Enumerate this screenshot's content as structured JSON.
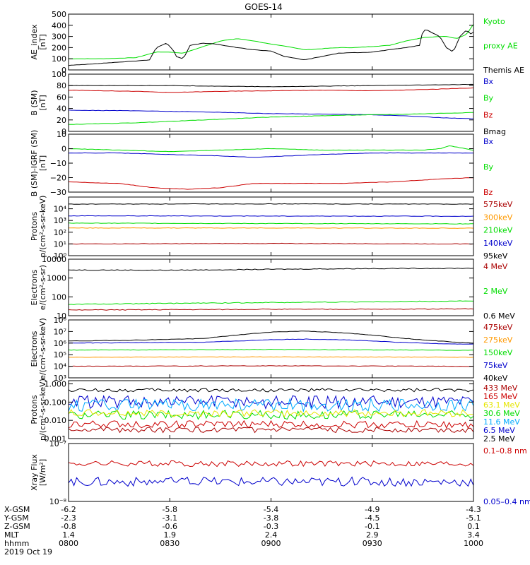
{
  "title": "GOES-14",
  "colors": {
    "black": "#000000",
    "green": "#00dd00",
    "blue": "#0000cc",
    "red": "#cc0000",
    "orange": "#ff9900",
    "yellow": "#e6e600",
    "cyan": "#00aaff",
    "teal": "#00c8a0",
    "maroon": "#aa0000"
  },
  "chart_data": [
    {
      "id": "ae",
      "type": "line",
      "ylabel": [
        "AE_index",
        "[nT]"
      ],
      "yscale": "linear",
      "ylim": [
        0,
        500
      ],
      "yticks": [
        0,
        100,
        200,
        300,
        400,
        500
      ],
      "yticklabels": [
        "0",
        "100",
        "200",
        "300",
        "400",
        "500"
      ],
      "legend": [
        {
          "text": "Kyoto",
          "color": "green"
        },
        {
          "text": "proxy AE",
          "color": "green"
        },
        {
          "text": "Themis AE",
          "color": "black"
        }
      ],
      "series": [
        {
          "name": "Kyoto proxy AE",
          "color": "green",
          "x": [
            0,
            10,
            20,
            26,
            30,
            34,
            40,
            45,
            50,
            55,
            60,
            65,
            70,
            75,
            80,
            85,
            90,
            95,
            100,
            105,
            110,
            112,
            115,
            118,
            120
          ],
          "y": [
            100,
            100,
            110,
            160,
            160,
            150,
            210,
            260,
            280,
            260,
            230,
            210,
            180,
            190,
            200,
            200,
            210,
            220,
            260,
            290,
            300,
            300,
            280,
            320,
            410
          ]
        },
        {
          "name": "Themis AE",
          "color": "black",
          "x": [
            0,
            5,
            10,
            20,
            24,
            26,
            29,
            31,
            32,
            34,
            36,
            40,
            44,
            50,
            55,
            60,
            64,
            70,
            80,
            90,
            95,
            100,
            104,
            105,
            106,
            110,
            112,
            114,
            116,
            118,
            119,
            120
          ],
          "y": [
            40,
            50,
            60,
            80,
            90,
            200,
            240,
            180,
            120,
            100,
            220,
            240,
            230,
            200,
            180,
            170,
            120,
            90,
            150,
            160,
            180,
            200,
            220,
            350,
            360,
            300,
            200,
            160,
            300,
            360,
            320,
            340
          ]
        }
      ]
    },
    {
      "id": "bsm",
      "type": "line",
      "ylabel": [
        "B (SM)",
        "[nT]"
      ],
      "yscale": "linear",
      "ylim": [
        0,
        100
      ],
      "yticks": [
        0,
        20,
        40,
        60,
        80,
        100
      ],
      "yticklabels": [
        "0",
        "20",
        "40",
        "60",
        "80",
        "100"
      ],
      "legend": [
        {
          "text": "Bx",
          "color": "blue"
        },
        {
          "text": "By",
          "color": "green"
        },
        {
          "text": "Bz",
          "color": "red"
        },
        {
          "text": "Bmag",
          "color": "black"
        }
      ],
      "series": [
        {
          "name": "Bmag",
          "color": "black",
          "x": [
            0,
            30,
            60,
            90,
            120
          ],
          "y": [
            80,
            80,
            78,
            80,
            82
          ]
        },
        {
          "name": "Bz",
          "color": "red",
          "x": [
            0,
            20,
            30,
            45,
            60,
            75,
            90,
            105,
            120
          ],
          "y": [
            72,
            70,
            68,
            70,
            71,
            72,
            71,
            73,
            76
          ]
        },
        {
          "name": "Bx",
          "color": "blue",
          "x": [
            0,
            20,
            40,
            60,
            80,
            90,
            100,
            110,
            120
          ],
          "y": [
            37,
            36,
            34,
            31,
            30,
            29,
            27,
            24,
            22
          ]
        },
        {
          "name": "By",
          "color": "green",
          "x": [
            0,
            20,
            40,
            60,
            80,
            100,
            120
          ],
          "y": [
            12,
            15,
            20,
            25,
            28,
            30,
            33
          ]
        }
      ]
    },
    {
      "id": "bdiff",
      "type": "line",
      "ylabel": [
        "B (SM)-IGRF (SM)",
        "[nT]"
      ],
      "yscale": "linear",
      "ylim": [
        -30,
        10
      ],
      "yticks": [
        -30,
        -20,
        -10,
        0,
        10
      ],
      "yticklabels": [
        "−30",
        "−20",
        "−10",
        "0",
        "10"
      ],
      "legend": [
        {
          "text": "Bx",
          "color": "blue"
        },
        {
          "text": "By",
          "color": "green"
        },
        {
          "text": "Bz",
          "color": "red"
        }
      ],
      "series": [
        {
          "name": "By",
          "color": "green",
          "x": [
            0,
            15,
            30,
            45,
            60,
            75,
            90,
            105,
            110,
            113,
            120
          ],
          "y": [
            0,
            -1,
            -2,
            -1,
            0,
            -1,
            -1,
            -1,
            0,
            2,
            -1
          ]
        },
        {
          "name": "Bx",
          "color": "blue",
          "x": [
            0,
            15,
            30,
            45,
            55,
            65,
            75,
            90,
            105,
            120
          ],
          "y": [
            -3,
            -3,
            -4,
            -5,
            -6,
            -5,
            -4,
            -3,
            -3,
            -3
          ]
        },
        {
          "name": "Bz",
          "color": "red",
          "x": [
            0,
            15,
            25,
            35,
            45,
            55,
            65,
            80,
            95,
            110,
            120
          ],
          "y": [
            -23,
            -24,
            -27,
            -28,
            -27,
            -24,
            -24,
            -24,
            -23,
            -21,
            -20
          ]
        }
      ]
    },
    {
      "id": "protons1",
      "type": "line",
      "ylabel": [
        "Protons",
        "p/(cm²-s-sr-keV)"
      ],
      "yscale": "log",
      "ylim": [
        1,
        100000
      ],
      "yticks": [
        1,
        10,
        100,
        1000,
        10000
      ],
      "yticklabels": [
        "10⁰",
        "10¹",
        "10²",
        "10³",
        "10⁴"
      ],
      "legend": [
        {
          "text": "575keV",
          "color": "maroon"
        },
        {
          "text": "300keV",
          "color": "orange"
        },
        {
          "text": "210keV",
          "color": "green"
        },
        {
          "text": "140keV",
          "color": "blue"
        },
        {
          "text": "95keV",
          "color": "black"
        }
      ],
      "series": [
        {
          "name": "95keV",
          "color": "black",
          "x": [
            0,
            60,
            120
          ],
          "y": [
            25000,
            26000,
            25000
          ]
        },
        {
          "name": "140keV",
          "color": "blue",
          "x": [
            0,
            60,
            120
          ],
          "y": [
            2500,
            2400,
            2300
          ]
        },
        {
          "name": "210keV",
          "color": "green",
          "x": [
            0,
            60,
            120
          ],
          "y": [
            600,
            550,
            520
          ]
        },
        {
          "name": "300keV",
          "color": "orange",
          "x": [
            0,
            60,
            120
          ],
          "y": [
            230,
            230,
            220
          ]
        },
        {
          "name": "575keV",
          "color": "maroon",
          "x": [
            0,
            60,
            120
          ],
          "y": [
            10,
            11,
            10
          ]
        }
      ]
    },
    {
      "id": "electrons1",
      "type": "line",
      "ylabel": [
        "Electrons",
        "e/(cm²-s-sr)"
      ],
      "yscale": "log",
      "ylim": [
        10,
        10000
      ],
      "yticks": [
        10,
        100,
        1000,
        10000
      ],
      "yticklabels": [
        "10",
        "100",
        "1000",
        "10000"
      ],
      "legend": [
        {
          "text": "4 MeV",
          "color": "maroon"
        },
        {
          "text": "2 MeV",
          "color": "green"
        },
        {
          "text": "0.6 MeV",
          "color": "black"
        }
      ],
      "series": [
        {
          "name": "0.6 MeV",
          "color": "black",
          "x": [
            0,
            30,
            60,
            90,
            120
          ],
          "y": [
            2700,
            2600,
            2900,
            3200,
            3300
          ]
        },
        {
          "name": "2 MeV",
          "color": "green",
          "x": [
            0,
            30,
            60,
            90,
            120
          ],
          "y": [
            40,
            45,
            50,
            55,
            60
          ]
        },
        {
          "name": "4 MeV",
          "color": "maroon",
          "x": [
            0,
            30,
            60,
            90,
            120
          ],
          "y": [
            20,
            21,
            22,
            22,
            23
          ]
        }
      ]
    },
    {
      "id": "electrons2",
      "type": "line",
      "ylabel": [
        "Electrons",
        "e/(cm²-s-sr-keV)"
      ],
      "yscale": "log",
      "ylim": [
        1000,
        100000000
      ],
      "yticks": [
        1000,
        10000,
        100000,
        1000000,
        10000000,
        100000000
      ],
      "yticklabels": [
        "10³",
        "10⁴",
        "10⁵",
        "10⁶",
        "10⁷",
        "10⁸"
      ],
      "legend": [
        {
          "text": "475keV",
          "color": "maroon"
        },
        {
          "text": "275keV",
          "color": "orange"
        },
        {
          "text": "150keV",
          "color": "green"
        },
        {
          "text": "75keV",
          "color": "blue"
        },
        {
          "text": "40keV",
          "color": "black"
        }
      ],
      "series": [
        {
          "name": "40keV",
          "color": "black",
          "x": [
            0,
            20,
            40,
            50,
            60,
            70,
            80,
            90,
            100,
            110,
            120
          ],
          "y": [
            1500000,
            1800000,
            2500000,
            5000000,
            9000000,
            11000000,
            8000000,
            5000000,
            2500000,
            1500000,
            1000000
          ]
        },
        {
          "name": "75keV",
          "color": "blue",
          "x": [
            0,
            20,
            40,
            50,
            60,
            70,
            80,
            90,
            100,
            110,
            120
          ],
          "y": [
            1000000,
            1100000,
            1200000,
            1500000,
            2000000,
            2200000,
            2000000,
            1500000,
            1100000,
            900000,
            800000
          ]
        },
        {
          "name": "150keV",
          "color": "green",
          "x": [
            0,
            60,
            120
          ],
          "y": [
            250000,
            280000,
            240000
          ]
        },
        {
          "name": "275keV",
          "color": "orange",
          "x": [
            0,
            60,
            120
          ],
          "y": [
            60000,
            65000,
            60000
          ]
        },
        {
          "name": "475keV",
          "color": "maroon",
          "x": [
            0,
            60,
            120
          ],
          "y": [
            10000,
            11000,
            10000
          ]
        }
      ]
    },
    {
      "id": "protons2",
      "type": "line",
      "ylabel": [
        "Protons",
        "p/(cm²-s-sr-keV)"
      ],
      "yscale": "log",
      "ylim": [
        0.001,
        1.5
      ],
      "yticks": [
        0.001,
        0.01,
        0.1,
        1
      ],
      "yticklabels": [
        "0.001",
        "0.010",
        "0.100",
        "1.000"
      ],
      "legend": [
        {
          "text": "433 MeV",
          "color": "maroon"
        },
        {
          "text": "165 MeV",
          "color": "red"
        },
        {
          "text": "63.1 MeV",
          "color": "yellow"
        },
        {
          "text": "30.6 MeV",
          "color": "green"
        },
        {
          "text": "11.6 MeV",
          "color": "cyan"
        },
        {
          "text": "6.5 MeV",
          "color": "blue"
        },
        {
          "text": "2.5 MeV",
          "color": "black"
        }
      ],
      "series": [
        {
          "name": "2.5 MeV",
          "color": "black",
          "x": [
            0,
            120
          ],
          "y": [
            0.45,
            0.45
          ],
          "noise": 0.1
        },
        {
          "name": "6.5 MeV",
          "color": "blue",
          "x": [
            0,
            120
          ],
          "y": [
            0.1,
            0.1
          ],
          "noise": 0.35
        },
        {
          "name": "11.6 MeV",
          "color": "cyan",
          "x": [
            0,
            120
          ],
          "y": [
            0.07,
            0.07
          ],
          "noise": 0.35
        },
        {
          "name": "30.6 MeV",
          "color": "green",
          "x": [
            0,
            120
          ],
          "y": [
            0.02,
            0.02
          ],
          "noise": 0.25
        },
        {
          "name": "63.1 MeV",
          "color": "yellow",
          "x": [
            0,
            120
          ],
          "y": [
            0.025,
            0.025
          ],
          "noise": 0.2
        },
        {
          "name": "165 MeV",
          "color": "red",
          "x": [
            0,
            120
          ],
          "y": [
            0.006,
            0.006
          ],
          "noise": 0.2
        },
        {
          "name": "433 MeV",
          "color": "maroon",
          "x": [
            0,
            120
          ],
          "y": [
            0.003,
            0.003
          ],
          "noise": 0.15
        }
      ]
    },
    {
      "id": "xray",
      "type": "line",
      "ylabel": [
        "Xray Flux",
        "[W/m²]"
      ],
      "yscale": "log",
      "ylim": [
        1e-08,
        1e-07
      ],
      "yticks": [
        1e-08,
        1e-07
      ],
      "yticklabels": [
        "10⁻⁸",
        "10⁻⁷"
      ],
      "legend": [
        {
          "text": "0.1–0.8 nm",
          "color": "red"
        },
        {
          "text": "0.05–0.4 nm",
          "color": "blue"
        }
      ],
      "series": [
        {
          "name": "0.1–0.8 nm",
          "color": "red",
          "x": [
            0,
            120
          ],
          "y": [
            4.5e-08,
            4.5e-08
          ],
          "noise": 0.05
        },
        {
          "name": "0.05–0.4 nm",
          "color": "blue",
          "x": [
            0,
            120
          ],
          "y": [
            2.2e-08,
            2.2e-08
          ],
          "noise": 0.08
        }
      ]
    }
  ],
  "x_axis": {
    "rows": [
      {
        "label": "X-GSM",
        "values": [
          "-6.2",
          "-5.8",
          "-5.4",
          "-4.9",
          "-4.3"
        ]
      },
      {
        "label": "Y-GSM",
        "values": [
          "-2.3",
          "-3.1",
          "-3.8",
          "-4.5",
          "-5.1"
        ]
      },
      {
        "label": "Z-GSM",
        "values": [
          "-0.8",
          "-0.6",
          "-0.3",
          "-0.1",
          "0.1"
        ]
      },
      {
        "label": "MLT",
        "values": [
          "1.4",
          "1.9",
          "2.4",
          "2.9",
          "3.4"
        ]
      },
      {
        "label": "hhmm",
        "values": [
          "0800",
          "0830",
          "0900",
          "0930",
          "1000"
        ]
      }
    ],
    "date": "2019 Oct 19",
    "tick_minutes": [
      0,
      30,
      60,
      90,
      120
    ],
    "range_minutes": [
      0,
      120
    ]
  }
}
